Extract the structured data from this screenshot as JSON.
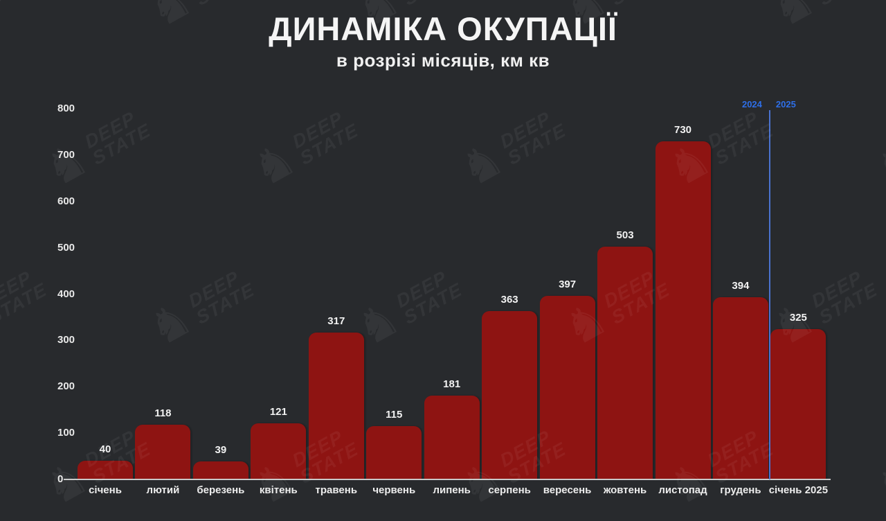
{
  "header": {
    "title": "ДИНАМІКА ОКУПАЦІЇ",
    "subtitle": "в розрізі місяців, км кв"
  },
  "chart_data": {
    "type": "bar",
    "title": "ДИНАМІКА ОКУПАЦІЇ",
    "subtitle": "в розрізі місяців, км кв",
    "categories": [
      "січень",
      "лютий",
      "березень",
      "квітень",
      "травень",
      "червень",
      "липень",
      "серпень",
      "вересень",
      "жовтень",
      "листопад",
      "грудень",
      "січень 2025"
    ],
    "values": [
      40,
      118,
      39,
      121,
      317,
      115,
      181,
      363,
      397,
      503,
      730,
      394,
      325
    ],
    "xlabel": "",
    "ylabel": "км кв",
    "ylim": [
      0,
      800
    ],
    "yticks": [
      0,
      100,
      200,
      300,
      400,
      500,
      600,
      700,
      800
    ],
    "grid": false,
    "legend": false,
    "bar_color": "#8e1412",
    "divider_after_index": 11
  },
  "era_divider": {
    "left_label": "2024",
    "right_label": "2025",
    "line_color": "#4a72cf",
    "label_color": "#2e6fe8"
  },
  "watermark": {
    "brand_line1": "DEEP",
    "brand_line2": "STATE",
    "knight_icon": "♞"
  },
  "colors": {
    "background": "#282a2d",
    "bar": "#8e1412",
    "axis_text": "#e9e9e9",
    "baseline": "#c9c9c9",
    "title_text": "#f5f5f5"
  }
}
